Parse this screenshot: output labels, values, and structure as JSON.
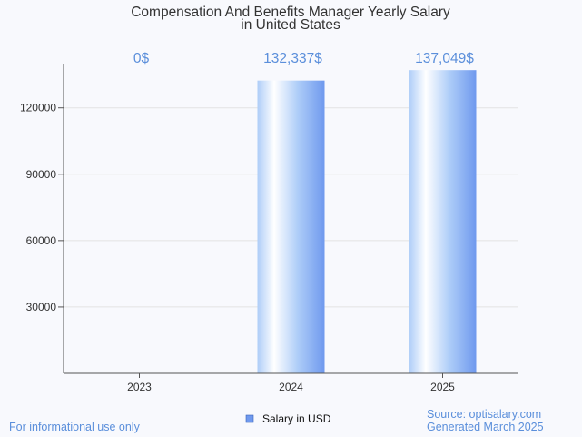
{
  "chart_data": {
    "type": "bar",
    "title_lines": [
      "Compensation And Benefits Manager Yearly Salary",
      "in United States"
    ],
    "categories": [
      "2023",
      "2024",
      "2025"
    ],
    "series": [
      {
        "name": "Salary in USD",
        "values": [
          0,
          132337,
          137049
        ]
      }
    ],
    "data_labels": [
      "0$",
      "132,337$",
      "137,049$"
    ],
    "yticks": [
      30000,
      60000,
      90000,
      120000
    ],
    "ylim": [
      0,
      140000
    ],
    "xlabel": "",
    "ylabel": "",
    "grid": true,
    "legend_position": "bottom-center"
  },
  "footer": {
    "left": "For informational use only",
    "source": "Source: optisalary.com",
    "generated": "Generated March 2025"
  },
  "colors": {
    "accent": "#5b8fdb",
    "bar_light": "#ffffff",
    "bar_mid": "#aecdf8",
    "bar_dark": "#6f99ee",
    "grid": "#e3e3e3",
    "axis": "#555555",
    "text": "#333333"
  }
}
